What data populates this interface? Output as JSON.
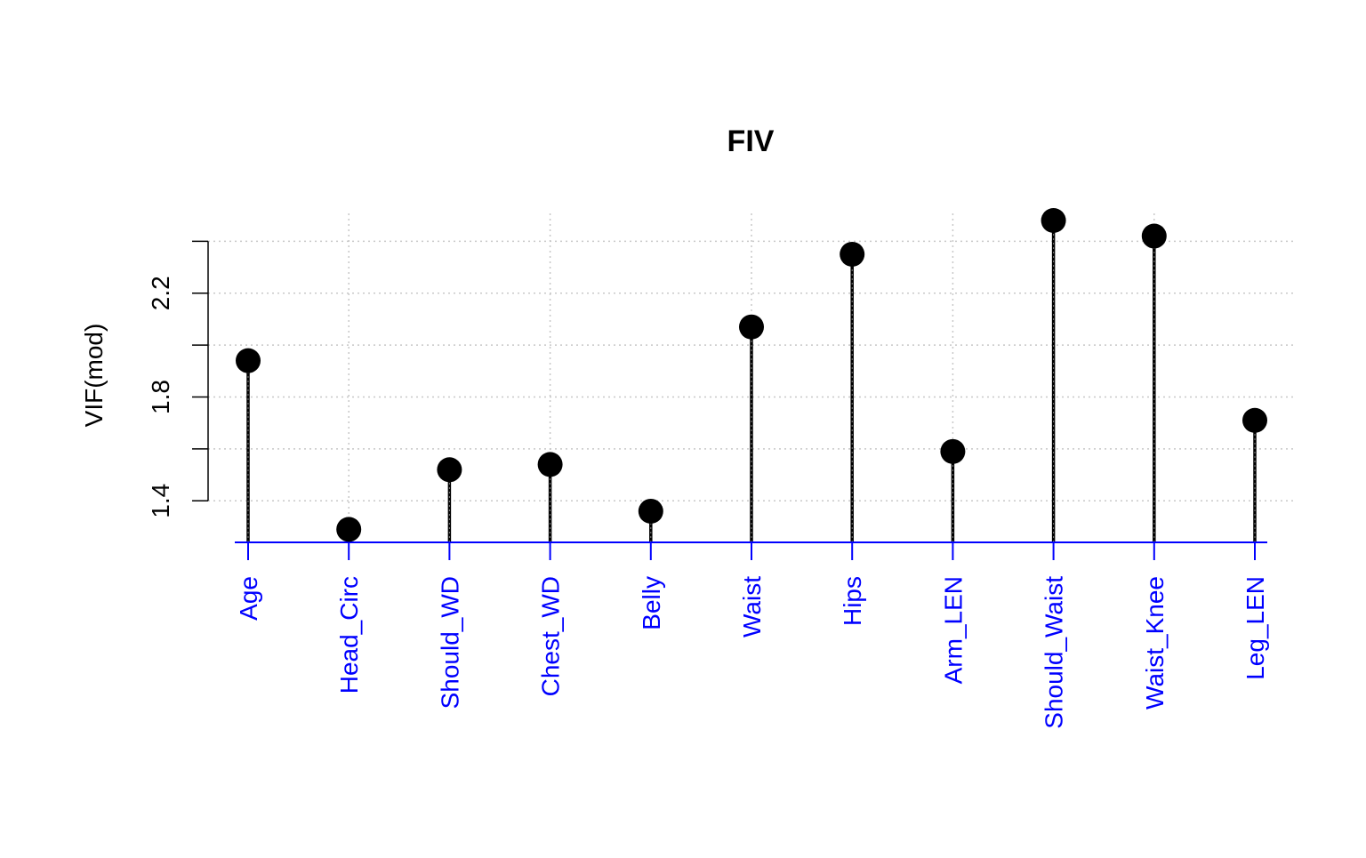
{
  "chart_data": {
    "type": "lollipop",
    "title": "FIV",
    "ylabel": "VIF(mod)",
    "xlabel": "",
    "ylim": [
      1.24,
      2.48
    ],
    "y_ticks": [
      1.4,
      1.8,
      2.2
    ],
    "y_tick_labels": [
      "1.4",
      "1.8",
      "2.2"
    ],
    "grid": true,
    "categories": [
      "Age",
      "Head_Circ",
      "Should_WD",
      "Chest_WD",
      "Belly",
      "Waist",
      "Hips",
      "Arm_LEN",
      "Should_Waist",
      "Waist_Knee",
      "Leg_LEN"
    ],
    "values": [
      1.94,
      1.29,
      1.52,
      1.54,
      1.36,
      2.07,
      2.35,
      1.59,
      2.48,
      2.42,
      1.71
    ],
    "colors": {
      "points": "#000000",
      "stems": "#000000",
      "x_axis": "#0000ff",
      "x_labels": "#0000ff",
      "grid": "#c8c8c8",
      "text": "#000000"
    }
  }
}
